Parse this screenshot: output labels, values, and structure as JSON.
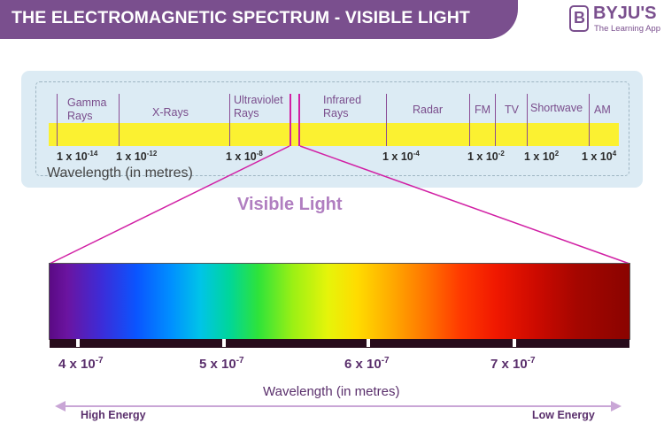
{
  "header": {
    "title": "THE ELECTROMAGNETIC SPECTRUM - VISIBLE LIGHT"
  },
  "logo": {
    "letter": "B",
    "name": "BYJU'S",
    "tagline": "The Learning App"
  },
  "spectrum": {
    "bands": [
      {
        "label": "Gamma\nRays"
      },
      {
        "label": "X-Rays"
      },
      {
        "label": "Ultraviolet\nRays"
      },
      {
        "label": "Infrared\nRays"
      },
      {
        "label": "Radar"
      },
      {
        "label": "FM"
      },
      {
        "label": "TV"
      },
      {
        "label": "Shortwave"
      },
      {
        "label": "AM"
      }
    ],
    "ticks": [
      {
        "base": "1 x 10",
        "exp": "-14"
      },
      {
        "base": "1 x 10",
        "exp": "-12"
      },
      {
        "base": "1 x 10",
        "exp": "-8"
      },
      {
        "base": "1 x 10",
        "exp": "-4"
      },
      {
        "base": "1 x 10",
        "exp": "-2"
      },
      {
        "base": "1 x 10",
        "exp": "2"
      },
      {
        "base": "1 x 10",
        "exp": "4"
      }
    ],
    "axis_label": "Wavelength (in metres)",
    "band_color": "#fbf131"
  },
  "visible": {
    "title": "Visible Light",
    "ticks": [
      {
        "base": "4 x 10",
        "exp": "-7"
      },
      {
        "base": "5 x 10",
        "exp": "-7"
      },
      {
        "base": "6 x 10",
        "exp": "-7"
      },
      {
        "base": "7 x 10",
        "exp": "-7"
      }
    ],
    "axis_label": "Wavelength (in metres)",
    "high_energy": "High Energy",
    "low_energy": "Low Energy"
  },
  "colors": {
    "brand": "#7a4f8e",
    "zoom_lines": "#d11fa4",
    "arrow": "#c9a6d6"
  }
}
